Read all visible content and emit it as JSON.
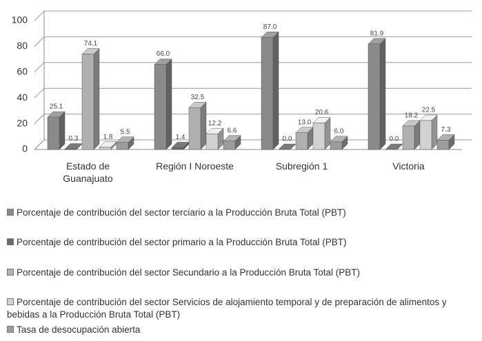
{
  "chart_data": {
    "type": "bar3d",
    "categories": [
      "Estado de Guanajuato",
      "Región I Noroeste",
      "Subregión 1",
      "Victoria"
    ],
    "series": [
      {
        "name": "Porcentaje de contribución del sector terciario a la Producción Bruta Total (PBT)",
        "color": "#8a8a8a",
        "values": [
          25.1,
          66.0,
          87.0,
          81.9
        ],
        "value_labels": [
          "25.1",
          "66.0",
          "87.0",
          "81.9"
        ]
      },
      {
        "name": "Porcentaje de contribución del sector primario a la Producción Bruta Total (PBT)",
        "color": "#6a6a6a",
        "values": [
          0.3,
          1.4,
          0.0,
          0.0
        ],
        "value_labels": [
          "0.3",
          "1.4",
          "0.0",
          "0.0"
        ]
      },
      {
        "name": "Porcentaje de contribución del sector Secundario a la Producción Bruta Total (PBT)",
        "color": "#b0b0b0",
        "values": [
          74.1,
          32.5,
          13.0,
          18.2
        ],
        "value_labels": [
          "74.1",
          "32.5",
          "13.0",
          "18.2"
        ]
      },
      {
        "name": "Porcentaje de contribución del sector Servicios de alojamiento temporal y de preparación de alimentos y bebidas a la Producción Bruta Total (PBT)",
        "color": "#d2d2d2",
        "values": [
          1.8,
          12.2,
          20.6,
          22.5
        ],
        "value_labels": [
          "1.8",
          "12.2",
          "20.6",
          "22.5"
        ]
      },
      {
        "name": "Tasa de desocupación abierta",
        "color": "#9c9c9c",
        "values": [
          5.5,
          6.6,
          6.0,
          7.3
        ],
        "value_labels": [
          "5.5",
          "6.6",
          "6.0",
          "7.3"
        ]
      }
    ],
    "ylim": [
      0,
      100
    ],
    "yticks": [
      0,
      20,
      40,
      60,
      80,
      100
    ],
    "grid": true,
    "legend": "bottom"
  }
}
